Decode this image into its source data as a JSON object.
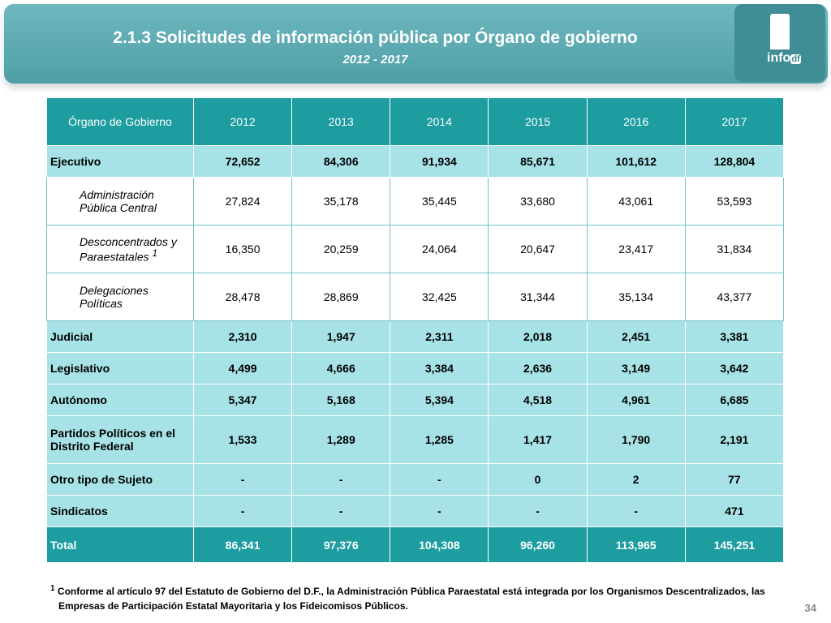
{
  "header": {
    "title": "2.1.3 Solicitudes de información pública por Órgano de gobierno",
    "subtitle": "2012 - 2017",
    "logo": {
      "main": "info",
      "suffix": "df"
    }
  },
  "table": {
    "columns": [
      "Órgano de Gobierno",
      "2012",
      "2013",
      "2014",
      "2015",
      "2016",
      "2017"
    ],
    "rows": [
      {
        "label": "Ejecutivo",
        "values": [
          "72,652",
          "84,306",
          "91,934",
          "85,671",
          "101,612",
          "128,804"
        ],
        "subrows": [
          {
            "label": "Administración Pública Central",
            "values": [
              "27,824",
              "35,178",
              "35,445",
              "33,680",
              "43,061",
              "53,593"
            ]
          },
          {
            "label": "Desconcentrados y Paraestatales",
            "note": "1",
            "values": [
              "16,350",
              "20,259",
              "24,064",
              "20,647",
              "23,417",
              "31,834"
            ]
          },
          {
            "label": "Delegaciones Políticas",
            "values": [
              "28,478",
              "28,869",
              "32,425",
              "31,344",
              "35,134",
              "43,377"
            ]
          }
        ]
      },
      {
        "label": "Judicial",
        "values": [
          "2,310",
          "1,947",
          "2,311",
          "2,018",
          "2,451",
          "3,381"
        ]
      },
      {
        "label": "Legislativo",
        "values": [
          "4,499",
          "4,666",
          "3,384",
          "2,636",
          "3,149",
          "3,642"
        ]
      },
      {
        "label": "Autónomo",
        "values": [
          "5,347",
          "5,168",
          "5,394",
          "4,518",
          "4,961",
          "6,685"
        ]
      },
      {
        "label": "Partidos Políticos en el Distrito Federal",
        "values": [
          "1,533",
          "1,289",
          "1,285",
          "1,417",
          "1,790",
          "2,191"
        ]
      },
      {
        "label": "Otro tipo de Sujeto",
        "values": [
          "-",
          "-",
          "-",
          "0",
          "2",
          "77"
        ]
      },
      {
        "label": "Sindicatos",
        "values": [
          "-",
          "-",
          "-",
          "-",
          "-",
          "471"
        ]
      }
    ],
    "total": {
      "label": "Total",
      "values": [
        "86,341",
        "97,376",
        "104,308",
        "96,260",
        "113,965",
        "145,251"
      ]
    }
  },
  "footnote": {
    "marker": "1",
    "text": "Conforme al artículo 97 del Estatuto de Gobierno del D.F., la Administración Pública Paraestatal está integrada por los Organismos Descentralizados, las Empresas de Participación Estatal Mayoritaria y los Fideicomisos Públicos."
  },
  "page_number": "34"
}
